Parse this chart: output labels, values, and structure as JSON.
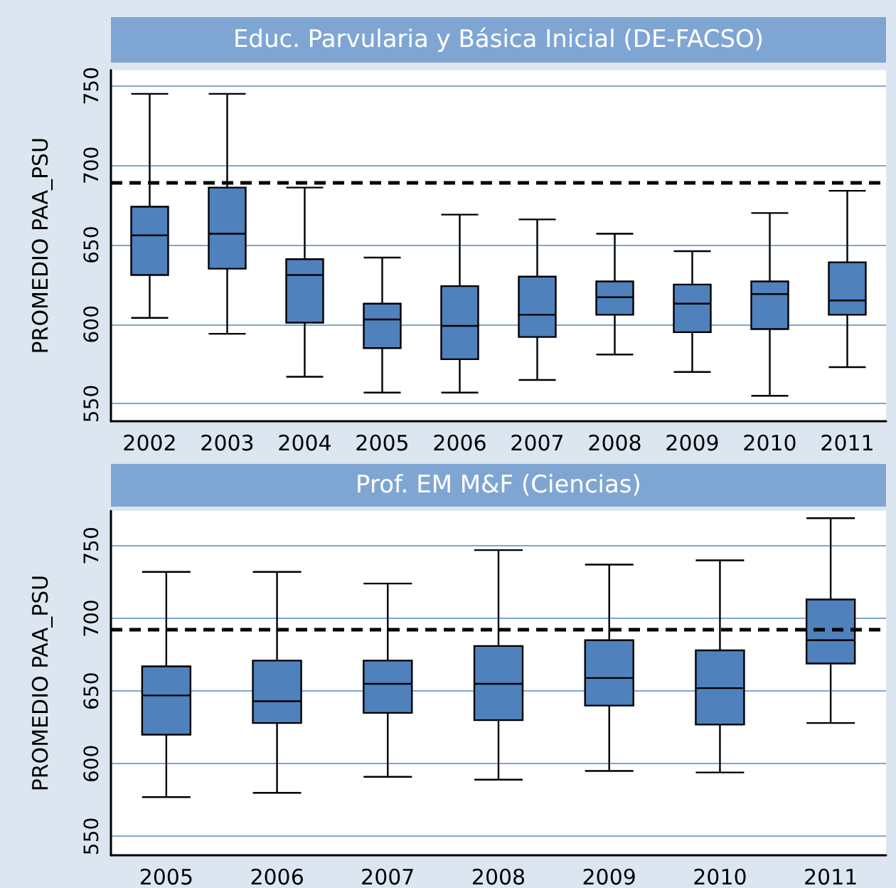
{
  "chart_data": [
    {
      "type": "box",
      "title": "Educ. Parvularia y Básica Inicial (DE-FACSO)",
      "ylabel": "PROMEDIO PAA_PSU",
      "categories": [
        "2002",
        "2003",
        "2004",
        "2005",
        "2006",
        "2007",
        "2008",
        "2009",
        "2010",
        "2011"
      ],
      "color": "#4f81bd",
      "boxes": [
        {
          "low": 604,
          "q1": 631,
          "median": 656,
          "q3": 674,
          "high": 745
        },
        {
          "low": 594,
          "q1": 635,
          "median": 657,
          "q3": 686,
          "high": 745
        },
        {
          "low": 567,
          "q1": 601,
          "median": 631,
          "q3": 641,
          "high": 686
        },
        {
          "low": 557,
          "q1": 585,
          "median": 603,
          "q3": 613,
          "high": 642
        },
        {
          "low": 557,
          "q1": 578,
          "median": 599,
          "q3": 624,
          "high": 669
        },
        {
          "low": 565,
          "q1": 592,
          "median": 606,
          "q3": 630,
          "high": 666
        },
        {
          "low": 581,
          "q1": 606,
          "median": 617,
          "q3": 627,
          "high": 657
        },
        {
          "low": 570,
          "q1": 595,
          "median": 613,
          "q3": 625,
          "high": 646
        },
        {
          "low": 555,
          "q1": 597,
          "median": 619,
          "q3": 627,
          "high": 670
        },
        {
          "low": 573,
          "q1": 606,
          "median": 615,
          "q3": 639,
          "high": 684
        }
      ],
      "ylim": [
        539,
        760
      ],
      "yticks": [
        550,
        600,
        650,
        700,
        750
      ],
      "grid": "y",
      "ref_lines": [
        {
          "axis": "y",
          "value": 689,
          "color": "#000000",
          "line_style": "dashed"
        }
      ]
    },
    {
      "type": "box",
      "title": "Prof. EM M&F (Ciencias)",
      "ylabel": "PROMEDIO PAA_PSU",
      "categories": [
        "2005",
        "2006",
        "2007",
        "2008",
        "2009",
        "2010",
        "2011"
      ],
      "color": "#4f81bd",
      "boxes": [
        {
          "low": 577,
          "q1": 620,
          "median": 647,
          "q3": 667,
          "high": 732
        },
        {
          "low": 580,
          "q1": 628,
          "median": 643,
          "q3": 671,
          "high": 732
        },
        {
          "low": 591,
          "q1": 635,
          "median": 655,
          "q3": 671,
          "high": 724
        },
        {
          "low": 589,
          "q1": 630,
          "median": 655,
          "q3": 681,
          "high": 747
        },
        {
          "low": 595,
          "q1": 640,
          "median": 659,
          "q3": 685,
          "high": 737
        },
        {
          "low": 594,
          "q1": 627,
          "median": 652,
          "q3": 678,
          "high": 740
        },
        {
          "low": 628,
          "q1": 669,
          "median": 685,
          "q3": 713,
          "high": 769
        }
      ],
      "ylim": [
        537,
        774
      ],
      "yticks": [
        550,
        600,
        650,
        700,
        750
      ],
      "grid": "y",
      "ref_lines": [
        {
          "axis": "y",
          "value": 692,
          "color": "#000000",
          "line_style": "dashed"
        }
      ]
    }
  ]
}
